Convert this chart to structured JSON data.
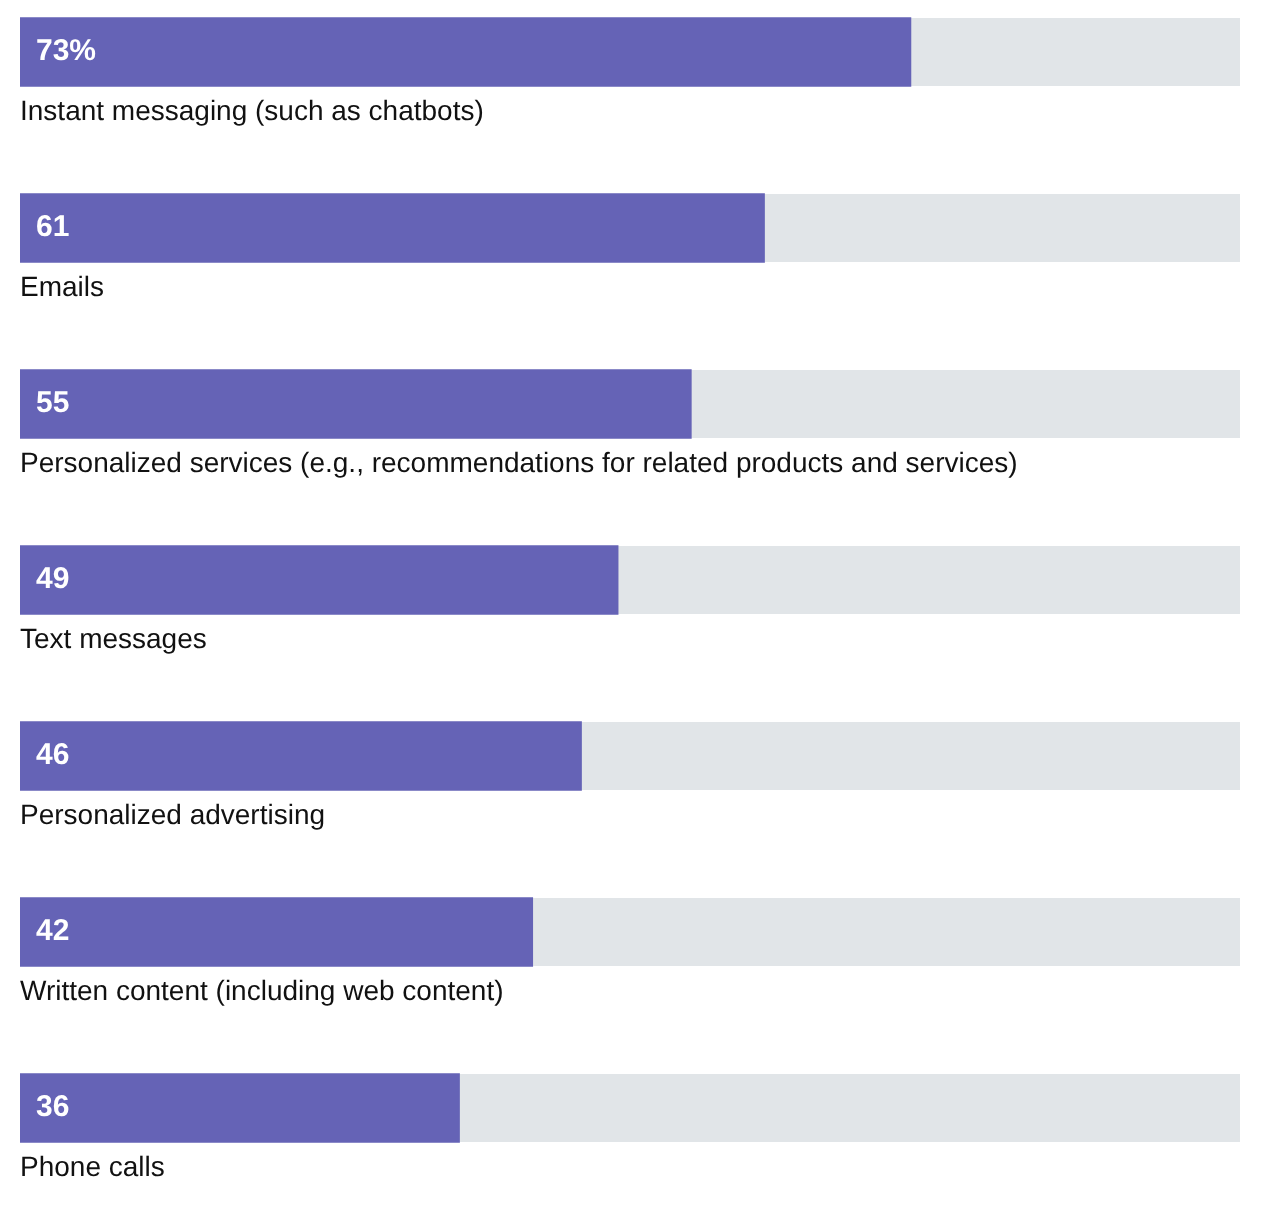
{
  "chart_data": {
    "type": "bar",
    "orientation": "horizontal",
    "categories": [
      "Instant messaging (such as chatbots)",
      "Emails",
      "Personalized services (e.g., recommendations for related products and services)",
      "Text messages",
      "Personalized advertising",
      "Written content (including web content)",
      "Phone calls"
    ],
    "values": [
      73,
      61,
      55,
      49,
      46,
      42,
      36
    ],
    "color": "#6563b6",
    "value_labels": [
      "73%",
      "61",
      "55",
      "49",
      "46",
      "42",
      "36"
    ],
    "xlim": [
      0,
      100
    ],
    "tick_labels": false
  }
}
